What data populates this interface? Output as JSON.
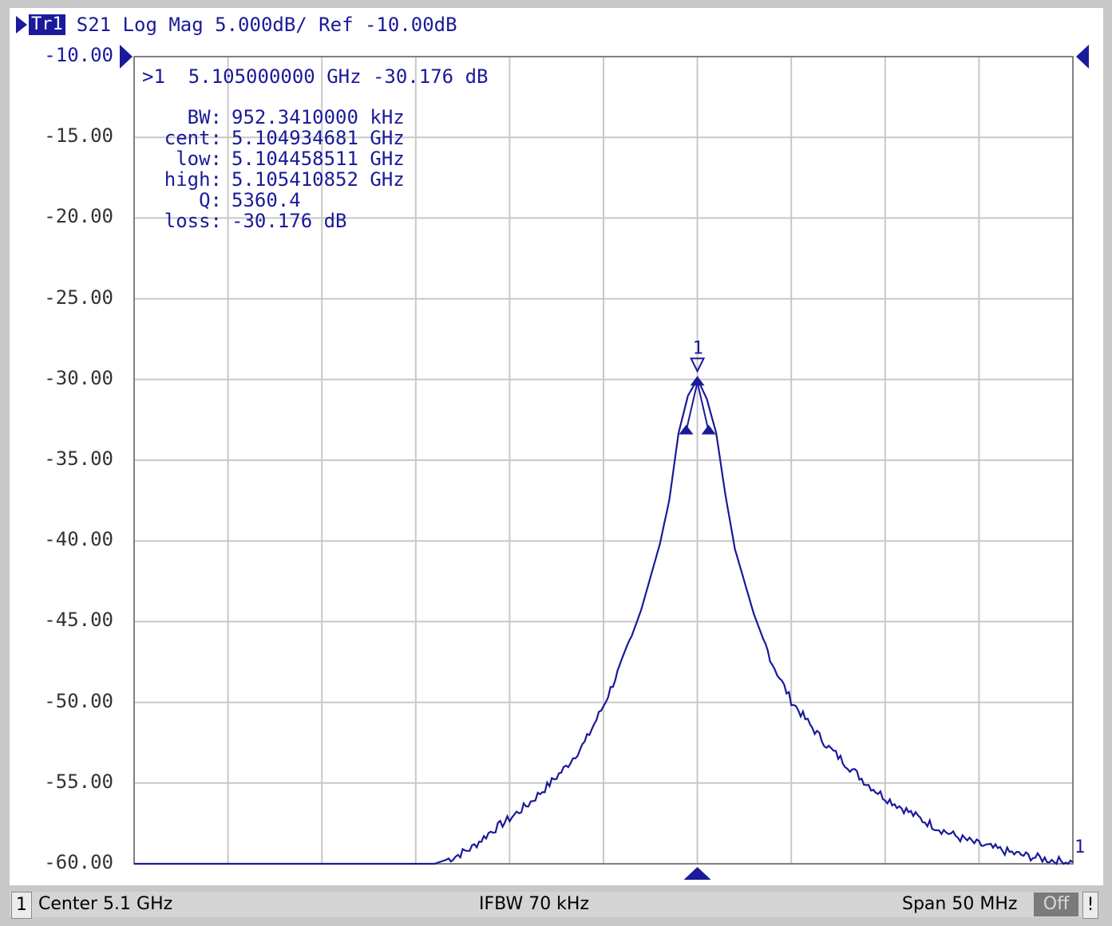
{
  "header": {
    "trace_badge": "Tr1",
    "trace_desc": "S21 Log Mag 5.000dB/ Ref -10.00dB"
  },
  "marker_readout": ">1  5.105000000 GHz -30.176 dB",
  "bandwidth_search": [
    {
      "key": "BW:",
      "value": "952.3410000 kHz"
    },
    {
      "key": "cent:",
      "value": "5.104934681 GHz"
    },
    {
      "key": "low:",
      "value": "5.104458511 GHz"
    },
    {
      "key": "high:",
      "value": "5.105410852 GHz"
    },
    {
      "key": "Q:",
      "value": "5360.4"
    },
    {
      "key": "loss:",
      "value": "-30.176 dB"
    }
  ],
  "status": {
    "channel": "1",
    "center": "Center 5.1 GHz",
    "ifbw": "IFBW 70 kHz",
    "span": "Span 50 MHz",
    "off": "Off",
    "bang": "!"
  },
  "colors": {
    "trace": "#1a1a9a",
    "grid": "#c8c8c8",
    "axis_text": "#333333"
  },
  "chart_data": {
    "type": "line",
    "ylabel_ticks": [
      "-10.00",
      "-15.00",
      "-20.00",
      "-25.00",
      "-30.00",
      "-35.00",
      "-40.00",
      "-45.00",
      "-50.00",
      "-55.00",
      "-60.00"
    ],
    "ylim": [
      -60,
      -10
    ],
    "xlim_mhz": [
      5075,
      5125
    ],
    "x_divisions": 10,
    "y_divisions": 10,
    "grid": true,
    "marker_label": "1",
    "end_label": "1",
    "series": [
      {
        "x_mhz": [
          5075,
          5091,
          5092,
          5093,
          5094,
          5095,
          5096,
          5097,
          5098,
          5099,
          5100,
          5101,
          5102,
          5103,
          5103.5,
          5104,
          5104.5,
          5104.9,
          5105,
          5105.1,
          5105.5,
          5106,
          5106.5,
          5107,
          5108,
          5109,
          5110,
          5111,
          5112,
          5113,
          5114,
          5115,
          5116,
          5117,
          5118,
          5119,
          5120,
          5121,
          5122,
          5123,
          5124,
          5125
        ],
        "y_db": [
          -60,
          -60,
          -59.6,
          -59,
          -58,
          -57.2,
          -56.3,
          -55.2,
          -54,
          -52.5,
          -50.2,
          -47.5,
          -44.3,
          -40.2,
          -37.5,
          -33.3,
          -31,
          -30.2,
          -30.18,
          -30.2,
          -31.2,
          -33.3,
          -37.2,
          -40.5,
          -44.5,
          -47.6,
          -49.9,
          -51.4,
          -52.8,
          -53.9,
          -55,
          -55.9,
          -56.6,
          -57.3,
          -57.9,
          -58.4,
          -58.8,
          -59.1,
          -59.4,
          -59.6,
          -59.8,
          -59.9
        ]
      }
    ]
  }
}
